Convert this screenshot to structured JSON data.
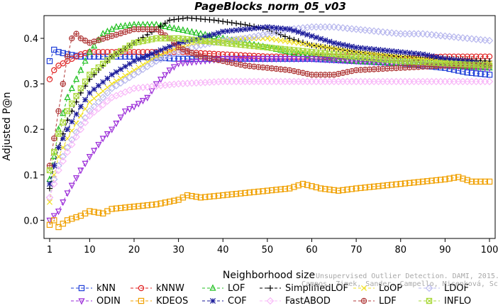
{
  "chart_data": {
    "type": "line",
    "title": "PageBlocks_norm_05_v03",
    "xlabel": "Neighborhood size",
    "ylabel": "Adjusted P@n",
    "xlim": [
      1,
      100
    ],
    "ylim": [
      -0.04,
      0.45
    ],
    "xticks": [
      1,
      10,
      20,
      30,
      40,
      50,
      60,
      70,
      80,
      90,
      100
    ],
    "yticks": [
      0.0,
      0.1,
      0.2,
      0.3,
      0.4
    ],
    "ytick_labels": [
      "0.0",
      "0.1",
      "0.2",
      "0.3",
      "0.4"
    ],
    "grid": false,
    "legend_position": "bottom",
    "watermark_lines": [
      "Unsupervised Outlier Detection. DAMI, 2015.",
      "Campos, Zimek, Sander, Campello, Micenková, Schubert, Assent, Houle"
    ],
    "series": [
      {
        "name": "kNN",
        "color": "#1f3fd8",
        "marker": "square",
        "dash": "4,3",
        "points": [
          [
            1,
            0.35
          ],
          [
            2,
            0.375
          ],
          [
            3,
            0.37
          ],
          [
            5,
            0.365
          ],
          [
            8,
            0.36
          ],
          [
            10,
            0.36
          ],
          [
            15,
            0.36
          ],
          [
            20,
            0.36
          ],
          [
            30,
            0.355
          ],
          [
            40,
            0.355
          ],
          [
            50,
            0.355
          ],
          [
            60,
            0.355
          ],
          [
            70,
            0.35
          ],
          [
            80,
            0.345
          ],
          [
            90,
            0.335
          ],
          [
            95,
            0.325
          ],
          [
            100,
            0.32
          ]
        ]
      },
      {
        "name": "kNNW",
        "color": "#e02020",
        "marker": "circle",
        "dash": "4,3",
        "points": [
          [
            1,
            0.31
          ],
          [
            2,
            0.33
          ],
          [
            3,
            0.34
          ],
          [
            5,
            0.35
          ],
          [
            8,
            0.365
          ],
          [
            10,
            0.37
          ],
          [
            15,
            0.37
          ],
          [
            20,
            0.37
          ],
          [
            30,
            0.37
          ],
          [
            40,
            0.365
          ],
          [
            50,
            0.36
          ],
          [
            60,
            0.36
          ],
          [
            70,
            0.36
          ],
          [
            80,
            0.355
          ],
          [
            90,
            0.36
          ],
          [
            100,
            0.36
          ]
        ]
      },
      {
        "name": "LOF",
        "color": "#20c020",
        "marker": "triangle",
        "dash": "4,3",
        "points": [
          [
            1,
            0.09
          ],
          [
            2,
            0.14
          ],
          [
            3,
            0.2
          ],
          [
            5,
            0.27
          ],
          [
            8,
            0.33
          ],
          [
            10,
            0.37
          ],
          [
            13,
            0.41
          ],
          [
            16,
            0.425
          ],
          [
            20,
            0.43
          ],
          [
            25,
            0.43
          ],
          [
            30,
            0.42
          ],
          [
            35,
            0.41
          ],
          [
            40,
            0.4
          ],
          [
            45,
            0.39
          ],
          [
            50,
            0.38
          ],
          [
            60,
            0.36
          ],
          [
            70,
            0.35
          ],
          [
            80,
            0.345
          ],
          [
            90,
            0.34
          ],
          [
            100,
            0.335
          ]
        ]
      },
      {
        "name": "SimplifiedLOF",
        "color": "#000000",
        "marker": "plus",
        "dash": "4,3",
        "points": [
          [
            1,
            0.07
          ],
          [
            2,
            0.12
          ],
          [
            3,
            0.16
          ],
          [
            5,
            0.22
          ],
          [
            8,
            0.28
          ],
          [
            10,
            0.31
          ],
          [
            15,
            0.36
          ],
          [
            20,
            0.39
          ],
          [
            25,
            0.42
          ],
          [
            28,
            0.44
          ],
          [
            32,
            0.445
          ],
          [
            38,
            0.44
          ],
          [
            45,
            0.43
          ],
          [
            50,
            0.42
          ],
          [
            55,
            0.4
          ],
          [
            60,
            0.385
          ],
          [
            70,
            0.37
          ],
          [
            80,
            0.36
          ],
          [
            90,
            0.355
          ],
          [
            100,
            0.35
          ]
        ]
      },
      {
        "name": "LoOP",
        "color": "#f0e020",
        "marker": "x",
        "dash": "4,3",
        "points": [
          [
            1,
            0.04
          ],
          [
            2,
            0.1
          ],
          [
            3,
            0.14
          ],
          [
            5,
            0.18
          ],
          [
            8,
            0.23
          ],
          [
            10,
            0.26
          ],
          [
            15,
            0.3
          ],
          [
            20,
            0.33
          ],
          [
            25,
            0.36
          ],
          [
            30,
            0.38
          ],
          [
            35,
            0.39
          ],
          [
            40,
            0.395
          ],
          [
            45,
            0.4
          ],
          [
            50,
            0.4
          ],
          [
            60,
            0.385
          ],
          [
            70,
            0.37
          ],
          [
            80,
            0.36
          ],
          [
            90,
            0.35
          ],
          [
            100,
            0.345
          ]
        ]
      },
      {
        "name": "LDOF",
        "color": "#b8b8ee",
        "marker": "diamond",
        "dash": "4,3",
        "points": [
          [
            1,
            0.05
          ],
          [
            2,
            0.09
          ],
          [
            3,
            0.12
          ],
          [
            5,
            0.16
          ],
          [
            8,
            0.21
          ],
          [
            10,
            0.24
          ],
          [
            15,
            0.29
          ],
          [
            20,
            0.32
          ],
          [
            25,
            0.35
          ],
          [
            30,
            0.37
          ],
          [
            35,
            0.385
          ],
          [
            40,
            0.395
          ],
          [
            45,
            0.4
          ],
          [
            50,
            0.41
          ],
          [
            55,
            0.42
          ],
          [
            60,
            0.425
          ],
          [
            65,
            0.425
          ],
          [
            70,
            0.42
          ],
          [
            75,
            0.415
          ],
          [
            80,
            0.41
          ],
          [
            85,
            0.41
          ],
          [
            90,
            0.405
          ],
          [
            95,
            0.4
          ],
          [
            100,
            0.395
          ]
        ]
      },
      {
        "name": "ODIN",
        "color": "#9a2ad8",
        "marker": "triangle-down",
        "dash": "4,3",
        "points": [
          [
            1,
            0.0
          ],
          [
            2,
            0.01
          ],
          [
            3,
            0.02
          ],
          [
            5,
            0.06
          ],
          [
            8,
            0.11
          ],
          [
            10,
            0.14
          ],
          [
            13,
            0.18
          ],
          [
            15,
            0.2
          ],
          [
            18,
            0.24
          ],
          [
            20,
            0.25
          ],
          [
            23,
            0.27
          ],
          [
            25,
            0.3
          ],
          [
            28,
            0.33
          ],
          [
            30,
            0.345
          ],
          [
            35,
            0.35
          ],
          [
            40,
            0.355
          ],
          [
            50,
            0.355
          ],
          [
            60,
            0.355
          ],
          [
            70,
            0.35
          ],
          [
            80,
            0.345
          ],
          [
            90,
            0.34
          ],
          [
            100,
            0.335
          ]
        ]
      },
      {
        "name": "KDEOS",
        "color": "#f0a000",
        "marker": "square",
        "dash": "4,3",
        "points": [
          [
            1,
            -0.01
          ],
          [
            2,
            0.0
          ],
          [
            3,
            -0.015
          ],
          [
            5,
            0.0
          ],
          [
            8,
            0.01
          ],
          [
            10,
            0.02
          ],
          [
            13,
            0.015
          ],
          [
            15,
            0.025
          ],
          [
            20,
            0.03
          ],
          [
            25,
            0.035
          ],
          [
            30,
            0.045
          ],
          [
            32,
            0.055
          ],
          [
            35,
            0.05
          ],
          [
            40,
            0.055
          ],
          [
            45,
            0.06
          ],
          [
            50,
            0.065
          ],
          [
            55,
            0.07
          ],
          [
            58,
            0.08
          ],
          [
            62,
            0.07
          ],
          [
            66,
            0.065
          ],
          [
            70,
            0.07
          ],
          [
            75,
            0.075
          ],
          [
            80,
            0.08
          ],
          [
            85,
            0.085
          ],
          [
            90,
            0.09
          ],
          [
            93,
            0.095
          ],
          [
            96,
            0.085
          ],
          [
            100,
            0.085
          ]
        ]
      },
      {
        "name": "COF",
        "color": "#1a1a9a",
        "marker": "star",
        "dash": "4,3",
        "points": [
          [
            1,
            0.08
          ],
          [
            2,
            0.12
          ],
          [
            3,
            0.16
          ],
          [
            5,
            0.2
          ],
          [
            8,
            0.25
          ],
          [
            10,
            0.28
          ],
          [
            15,
            0.32
          ],
          [
            20,
            0.35
          ],
          [
            25,
            0.37
          ],
          [
            30,
            0.39
          ],
          [
            35,
            0.4
          ],
          [
            40,
            0.415
          ],
          [
            45,
            0.42
          ],
          [
            50,
            0.425
          ],
          [
            55,
            0.42
          ],
          [
            60,
            0.405
          ],
          [
            65,
            0.39
          ],
          [
            70,
            0.38
          ],
          [
            75,
            0.375
          ],
          [
            80,
            0.37
          ],
          [
            85,
            0.365
          ],
          [
            90,
            0.355
          ],
          [
            95,
            0.35
          ],
          [
            100,
            0.34
          ]
        ]
      },
      {
        "name": "FastABOD",
        "color": "#f8b8f8",
        "marker": "diamond",
        "dash": "4,3",
        "points": [
          [
            1,
            0.05
          ],
          [
            2,
            0.08
          ],
          [
            3,
            0.11
          ],
          [
            5,
            0.15
          ],
          [
            8,
            0.2
          ],
          [
            10,
            0.23
          ],
          [
            15,
            0.27
          ],
          [
            20,
            0.29
          ],
          [
            25,
            0.295
          ],
          [
            30,
            0.3
          ],
          [
            40,
            0.305
          ],
          [
            50,
            0.305
          ],
          [
            60,
            0.305
          ],
          [
            70,
            0.305
          ],
          [
            80,
            0.305
          ],
          [
            90,
            0.305
          ],
          [
            100,
            0.305
          ]
        ]
      },
      {
        "name": "LDF",
        "color": "#b03a3a",
        "marker": "circle-dot",
        "dash": "4,3",
        "points": [
          [
            1,
            0.12
          ],
          [
            2,
            0.18
          ],
          [
            3,
            0.24
          ],
          [
            4,
            0.3
          ],
          [
            5,
            0.36
          ],
          [
            6,
            0.4
          ],
          [
            7,
            0.41
          ],
          [
            8,
            0.4
          ],
          [
            10,
            0.39
          ],
          [
            15,
            0.405
          ],
          [
            20,
            0.42
          ],
          [
            25,
            0.42
          ],
          [
            28,
            0.4
          ],
          [
            30,
            0.38
          ],
          [
            35,
            0.36
          ],
          [
            40,
            0.35
          ],
          [
            45,
            0.34
          ],
          [
            50,
            0.335
          ],
          [
            55,
            0.33
          ],
          [
            60,
            0.32
          ],
          [
            65,
            0.32
          ],
          [
            70,
            0.33
          ],
          [
            80,
            0.335
          ],
          [
            90,
            0.34
          ],
          [
            100,
            0.34
          ]
        ]
      },
      {
        "name": "INFLO",
        "color": "#a8d838",
        "marker": "square-x",
        "dash": "4,3",
        "points": [
          [
            1,
            0.11
          ],
          [
            2,
            0.15
          ],
          [
            3,
            0.19
          ],
          [
            5,
            0.24
          ],
          [
            8,
            0.29
          ],
          [
            10,
            0.32
          ],
          [
            15,
            0.36
          ],
          [
            20,
            0.39
          ],
          [
            25,
            0.4
          ],
          [
            30,
            0.4
          ],
          [
            35,
            0.395
          ],
          [
            40,
            0.39
          ],
          [
            45,
            0.385
          ],
          [
            50,
            0.38
          ],
          [
            60,
            0.37
          ],
          [
            70,
            0.36
          ],
          [
            80,
            0.35
          ],
          [
            90,
            0.345
          ],
          [
            100,
            0.34
          ]
        ]
      }
    ],
    "legend_rows": [
      [
        "kNN",
        "kNNW",
        "LOF",
        "SimplifiedLOF",
        "LoOP",
        "LDOF"
      ],
      [
        "ODIN",
        "KDEOS",
        "COF",
        "FastABOD",
        "LDF",
        "INFLO"
      ]
    ]
  }
}
